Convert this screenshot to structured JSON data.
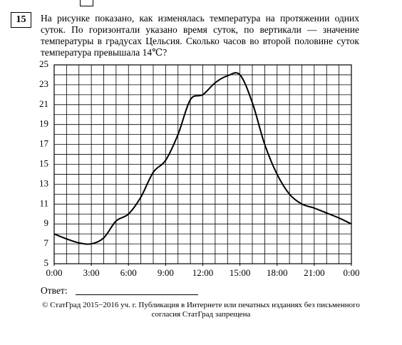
{
  "problem": {
    "number": "15",
    "text": "На рисунке показано, как изменялась температура на протяжении одних суток. По горизонтали указано время суток, по вертикали — значение температуры в градусах Цельсия. Сколько часов во второй половине суток температура превышала 14℃?",
    "answer_label": "Ответ:"
  },
  "chart_data": {
    "type": "line",
    "x": [
      0,
      1,
      2,
      3,
      4,
      5,
      6,
      7,
      8,
      9,
      10,
      11,
      12,
      13,
      14,
      15,
      16,
      17,
      18,
      19,
      20,
      21,
      22,
      23,
      24
    ],
    "values": [
      8,
      7.5,
      7.1,
      7,
      7.6,
      9.3,
      10,
      11.7,
      14.2,
      15.4,
      18,
      21.5,
      22,
      23.2,
      23.9,
      24,
      21.2,
      17,
      14,
      12,
      11,
      10.6,
      10.1,
      9.6,
      9
    ],
    "color": "#000000",
    "xlim": [
      0,
      24
    ],
    "xticks": [
      {
        "value": 0,
        "label": "0:00"
      },
      {
        "value": 3,
        "label": "3:00"
      },
      {
        "value": 6,
        "label": "6:00"
      },
      {
        "value": 9,
        "label": "9:00"
      },
      {
        "value": 12,
        "label": "12:00"
      },
      {
        "value": 15,
        "label": "15:00"
      },
      {
        "value": 18,
        "label": "18:00"
      },
      {
        "value": 21,
        "label": "21:00"
      },
      {
        "value": 24,
        "label": "0:00"
      }
    ],
    "ylim": [
      5,
      25
    ],
    "yticks": [
      5,
      7,
      9,
      11,
      13,
      15,
      17,
      19,
      21,
      23,
      25
    ],
    "y_gridlines": [
      5,
      6,
      7,
      8,
      9,
      10,
      11,
      12,
      13,
      14,
      15,
      16,
      17,
      18,
      19,
      20,
      21,
      22,
      23,
      24,
      25
    ],
    "grid": true
  },
  "footer": {
    "lines": [
      "© СтатГрад 2015−2016 уч. г. Публикация в Интернете или печатных изданиях без письменного",
      "согласия СтатГрад запрещена"
    ]
  }
}
